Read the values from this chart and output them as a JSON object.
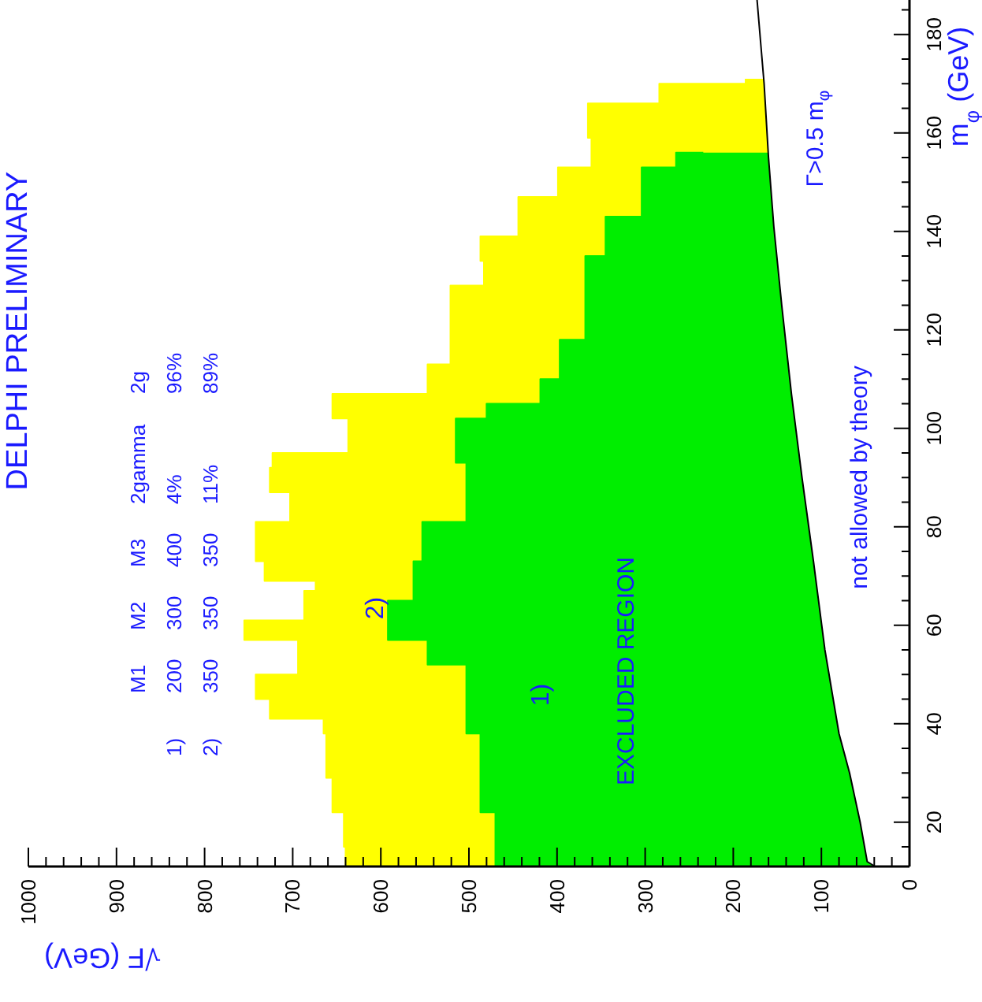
{
  "chart_data": {
    "type": "area",
    "orientation": "horizontal",
    "title": "DELPHI PRELIMINARY",
    "ylabel": "m$_{φ}$ (GeV)",
    "xlabel": "√F (GeV)",
    "ylim": [
      11,
      187
    ],
    "xlim": [
      1000,
      0
    ],
    "yticks": [
      {
        "value": 15,
        "label": null
      },
      20,
      {
        "value": 25,
        "label": null
      },
      {
        "value": 30,
        "label": null
      },
      {
        "value": 35,
        "label": null
      },
      40,
      {
        "value": 45,
        "label": null
      },
      {
        "value": 50,
        "label": null
      },
      {
        "value": 55,
        "label": null
      },
      60,
      {
        "value": 65,
        "label": null
      },
      {
        "value": 70,
        "label": null
      },
      {
        "value": 75,
        "label": null
      },
      80,
      {
        "value": 85,
        "label": null
      },
      {
        "value": 90,
        "label": null
      },
      {
        "value": 95,
        "label": null
      },
      100,
      {
        "value": 105,
        "label": null
      },
      {
        "value": 110,
        "label": null
      },
      {
        "value": 115,
        "label": null
      },
      120,
      {
        "value": 125,
        "label": null
      },
      {
        "value": 130,
        "label": null
      },
      {
        "value": 135,
        "label": null
      },
      140,
      {
        "value": 145,
        "label": null
      },
      {
        "value": 150,
        "label": null
      },
      {
        "value": 155,
        "label": null
      },
      160,
      {
        "value": 165,
        "label": null
      },
      {
        "value": 170,
        "label": null
      },
      {
        "value": 175,
        "label": null
      },
      180,
      {
        "value": 185,
        "label": null
      }
    ],
    "xticks": [
      0,
      {
        "value": 20,
        "label": null
      },
      {
        "value": 40,
        "label": null
      },
      {
        "value": 60,
        "label": null
      },
      {
        "value": 80,
        "label": null
      },
      100,
      {
        "value": 120,
        "label": null
      },
      {
        "value": 140,
        "label": null
      },
      {
        "value": 160,
        "label": null
      },
      {
        "value": 180,
        "label": null
      },
      200,
      {
        "value": 220,
        "label": null
      },
      {
        "value": 240,
        "label": null
      },
      {
        "value": 260,
        "label": null
      },
      {
        "value": 280,
        "label": null
      },
      300,
      {
        "value": 320,
        "label": null
      },
      {
        "value": 340,
        "label": null
      },
      {
        "value": 360,
        "label": null
      },
      {
        "value": 380,
        "label": null
      },
      400,
      {
        "value": 420,
        "label": null
      },
      {
        "value": 440,
        "label": null
      },
      {
        "value": 460,
        "label": null
      },
      {
        "value": 480,
        "label": null
      },
      500,
      {
        "value": 520,
        "label": null
      },
      {
        "value": 540,
        "label": null
      },
      {
        "value": 560,
        "label": null
      },
      {
        "value": 580,
        "label": null
      },
      600,
      {
        "value": 620,
        "label": null
      },
      {
        "value": 640,
        "label": null
      },
      {
        "value": 660,
        "label": null
      },
      {
        "value": 680,
        "label": null
      },
      700,
      {
        "value": 720,
        "label": null
      },
      {
        "value": 740,
        "label": null
      },
      {
        "value": 760,
        "label": null
      },
      {
        "value": 780,
        "label": null
      },
      800,
      {
        "value": 820,
        "label": null
      },
      {
        "value": 840,
        "label": null
      },
      {
        "value": 860,
        "label": null
      },
      {
        "value": 880,
        "label": null
      },
      900,
      {
        "value": 920,
        "label": null
      },
      {
        "value": 940,
        "label": null
      },
      {
        "value": 960,
        "label": null
      },
      {
        "value": 980,
        "label": null
      },
      1000
    ],
    "series": [
      {
        "color": "#ffff00",
        "values": [
          640,
          640,
          642,
          642,
          655,
          655,
          662,
          662,
          665,
          665,
          726,
          726,
          742,
          742,
          694,
          694,
          755,
          755,
          687,
          687,
          674,
          674,
          732,
          732,
          742,
          742,
          703,
          703,
          726,
          726,
          723,
          723,
          637,
          637,
          655,
          655,
          547,
          547,
          521,
          521,
          483,
          483,
          487,
          487,
          444,
          444,
          399,
          399,
          361,
          361,
          365,
          365,
          284,
          284,
          186,
          186
        ],
        "x": [
          11,
          15,
          15,
          22,
          22,
          29,
          29,
          38,
          38,
          41,
          41,
          45,
          45,
          50,
          50,
          57,
          57,
          61,
          61,
          67,
          67,
          69,
          69,
          73,
          73,
          81,
          81,
          87,
          87,
          92,
          92,
          95,
          95,
          102,
          102,
          107,
          107,
          113,
          113,
          129,
          129,
          134,
          134,
          139,
          139,
          147,
          147,
          153,
          153,
          159,
          159,
          166,
          166,
          170,
          170,
          171
        ]
      },
      {
        "color": "#00ee00",
        "values": [
          470,
          470,
          487,
          487,
          503,
          503,
          547,
          547,
          592,
          592,
          563,
          563,
          553,
          553,
          503,
          503,
          515,
          515,
          480,
          480,
          419,
          419,
          397,
          397,
          368,
          368,
          345,
          345,
          304,
          304,
          265,
          265,
          234
        ],
        "x": [
          11,
          22,
          22,
          38,
          38,
          52,
          52,
          57,
          57,
          65,
          65,
          73,
          73,
          81,
          81,
          93,
          93,
          102,
          102,
          105,
          105,
          110,
          110,
          118,
          118,
          135,
          135,
          143,
          143,
          153,
          153,
          156,
          156
        ]
      },
      {
        "color": "#ffffff",
        "values": [
          39,
          48,
          56,
          68,
          80,
          96,
          109,
          122,
          134,
          145,
          154,
          160,
          165,
          173
        ],
        "x": [
          11,
          12,
          20,
          30,
          38,
          55,
          73,
          90,
          107,
          125,
          141,
          155,
          170,
          187
        ]
      }
    ],
    "annotations": [
      "M1 M2 M3 2gamma 2g",
      "1) 200 300 400 4% 96%",
      "2) 350 350 350 11% 89%",
      "2)",
      "1)",
      "EXCLUDED REGION",
      "not allowed by theory",
      "Γ>0.5 m$_{φ}$"
    ]
  }
}
